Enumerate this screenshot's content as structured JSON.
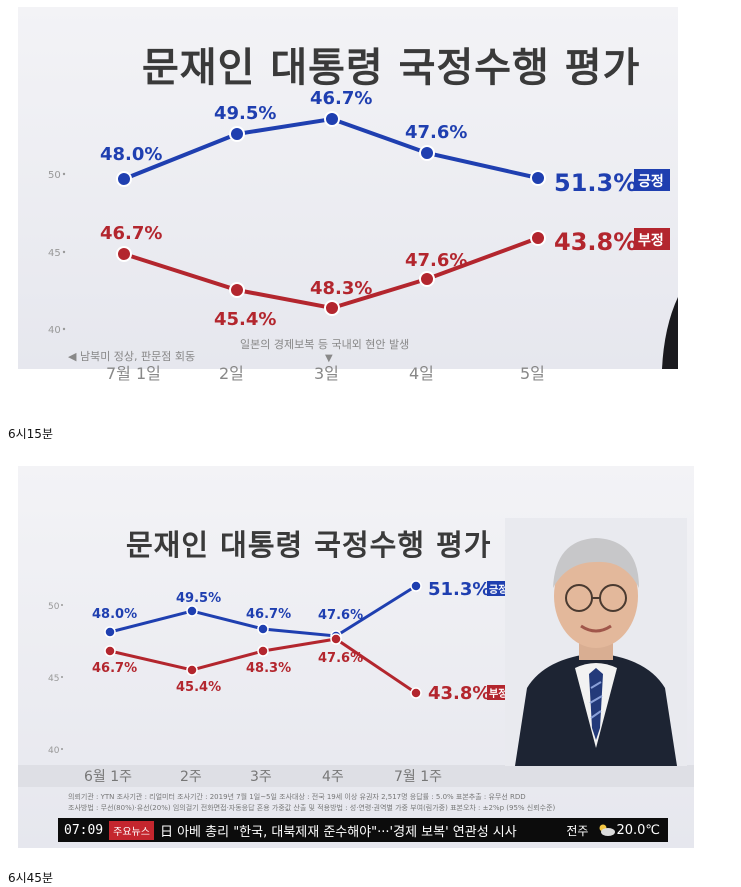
{
  "panel1": {
    "title": "문재인 대통령 국정수행 평가",
    "annotations": [
      "◀ 남북미 정상, 판문점 회동",
      "일본의 경제보복 등 국내외 현안 발생",
      "▼"
    ],
    "x_tick_labels_cropped": [
      "7월 1일",
      "2일",
      "3일",
      "4일",
      "5일"
    ]
  },
  "caption1": "6시15분",
  "panel2": {
    "title": "문재인 대통령 국정수행 평가",
    "x_tick_labels": [
      "6월 1주",
      "2주",
      "3주",
      "4주",
      "7월 1주"
    ],
    "info_line1": "의뢰기관 : YTN    조사기관 : 리얼미터    조사기간 : 2019년 7월 1일~5일    조사대상 : 전국 19세 이상 유권자 2,517명    응답률 : 5.0%    표본추출 : 유무선 RDD",
    "info_line2": "조사방법 : 무선(80%)·유선(20%) 임의걸기 전화면접·자동응답 혼용    가중값 산출 및 적용방법 : 성·연령·권역별 가중 부여(림가중)    표본오차 : ±2%p (95% 신뢰수준)",
    "ticker": {
      "time": "07:09",
      "badge": "주요뉴스",
      "headline": "日 아베 총리 \"한국, 대북제재 준수해야\"···'경제 보복' 연관성 시사",
      "city": "전주",
      "weather_icon": "cloud-sun-icon",
      "temp": "20.0℃"
    }
  },
  "caption2": "6시45분",
  "colors": {
    "positive": "#1f3fb0",
    "negative": "#b3262e",
    "title": "#3a3a3a"
  },
  "chart_data": [
    {
      "type": "line",
      "title": "문재인 대통령 국정수행 평가",
      "categories": [
        "7월 1일",
        "2일",
        "3일",
        "4일",
        "5일"
      ],
      "y_tick_labels": [
        "50",
        "45",
        "40"
      ],
      "series": [
        {
          "name": "긍정",
          "values": [
            48.0,
            49.5,
            46.7,
            47.6,
            51.3
          ],
          "labels": [
            "48.0%",
            "49.5%",
            "46.7%",
            "47.6%",
            "51.3%"
          ]
        },
        {
          "name": "부정",
          "values": [
            46.7,
            45.4,
            48.3,
            47.6,
            43.8
          ],
          "labels": [
            "46.7%",
            "45.4%",
            "48.3%",
            "47.6%",
            "43.8%"
          ]
        }
      ],
      "grid": false
    },
    {
      "type": "line",
      "title": "문재인 대통령 국정수행 평가",
      "categories": [
        "6월 1주",
        "2주",
        "3주",
        "4주",
        "7월 1주"
      ],
      "y_tick_labels": [
        "50",
        "45",
        "40"
      ],
      "series": [
        {
          "name": "긍정",
          "values": [
            48.0,
            49.5,
            46.7,
            47.6,
            51.3
          ],
          "labels": [
            "48.0%",
            "49.5%",
            "46.7%",
            "47.6%",
            "51.3%"
          ]
        },
        {
          "name": "부정",
          "values": [
            46.7,
            45.4,
            48.3,
            47.6,
            43.8
          ],
          "labels": [
            "46.7%",
            "45.4%",
            "48.3%",
            "47.6%",
            "43.8%"
          ]
        }
      ],
      "grid": false
    }
  ]
}
